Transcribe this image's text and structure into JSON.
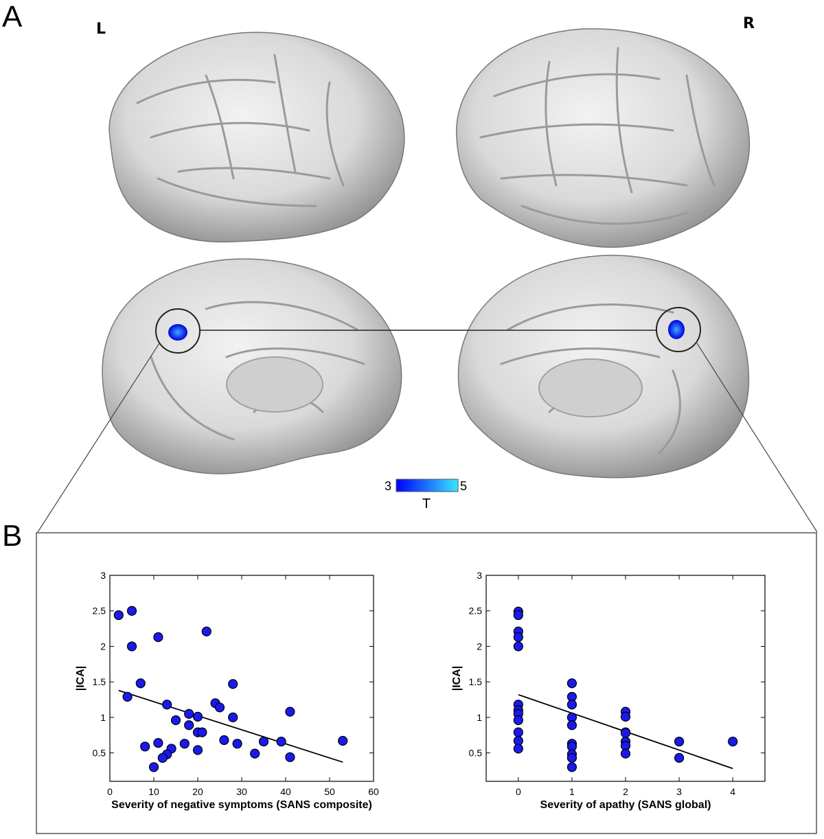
{
  "panels": {
    "a_label": "A",
    "b_label": "B",
    "left_hemi": "L",
    "right_hemi": "R"
  },
  "colorbar": {
    "min": "3",
    "max": "5",
    "label": "T",
    "color_low": "#0000ff",
    "color_high": "#39e6ff"
  },
  "chart_data": [
    {
      "type": "scatter",
      "title": "",
      "xlabel": "Severity of negative symptoms (SANS composite)",
      "ylabel": "|ICA|",
      "xlim": [
        0,
        60
      ],
      "ylim": [
        0.1,
        3
      ],
      "xticks": [
        0,
        10,
        20,
        30,
        40,
        50,
        60
      ],
      "yticks": [
        0.5,
        1,
        1.5,
        2,
        2.5,
        3
      ],
      "ytick_labels": [
        "0.5",
        "1",
        "1.5",
        "2",
        "2.5",
        "3"
      ],
      "marker_color": "#1a1aee",
      "points": [
        {
          "x": 2,
          "y": 2.44
        },
        {
          "x": 5,
          "y": 2.5
        },
        {
          "x": 5,
          "y": 2.0
        },
        {
          "x": 11,
          "y": 2.13
        },
        {
          "x": 22,
          "y": 2.21
        },
        {
          "x": 7,
          "y": 1.48
        },
        {
          "x": 4,
          "y": 1.29
        },
        {
          "x": 13,
          "y": 1.18
        },
        {
          "x": 28,
          "y": 1.47
        },
        {
          "x": 24,
          "y": 1.2
        },
        {
          "x": 25,
          "y": 1.14
        },
        {
          "x": 18,
          "y": 1.05
        },
        {
          "x": 20,
          "y": 1.01
        },
        {
          "x": 28,
          "y": 1.0
        },
        {
          "x": 15,
          "y": 0.96
        },
        {
          "x": 18,
          "y": 0.89
        },
        {
          "x": 20,
          "y": 0.79
        },
        {
          "x": 21,
          "y": 0.79
        },
        {
          "x": 41,
          "y": 1.08
        },
        {
          "x": 26,
          "y": 0.68
        },
        {
          "x": 29,
          "y": 0.63
        },
        {
          "x": 35,
          "y": 0.66
        },
        {
          "x": 39,
          "y": 0.66
        },
        {
          "x": 53,
          "y": 0.67
        },
        {
          "x": 11,
          "y": 0.64
        },
        {
          "x": 8,
          "y": 0.59
        },
        {
          "x": 17,
          "y": 0.63
        },
        {
          "x": 14,
          "y": 0.56
        },
        {
          "x": 13,
          "y": 0.48
        },
        {
          "x": 20,
          "y": 0.54
        },
        {
          "x": 12,
          "y": 0.43
        },
        {
          "x": 33,
          "y": 0.49
        },
        {
          "x": 41,
          "y": 0.44
        },
        {
          "x": 10,
          "y": 0.3
        }
      ],
      "fit_line": [
        {
          "x": 2,
          "y": 1.38
        },
        {
          "x": 53,
          "y": 0.37
        }
      ]
    },
    {
      "type": "scatter",
      "title": "",
      "xlabel": "Severity of apathy (SANS global)",
      "ylabel": "|ICA|",
      "xlim": [
        -0.6,
        4.6
      ],
      "ylim": [
        0.1,
        3
      ],
      "xticks": [
        0,
        1,
        2,
        3,
        4
      ],
      "yticks": [
        0.5,
        1,
        1.5,
        2,
        2.5,
        3
      ],
      "ytick_labels": [
        "0.5",
        "1",
        "1.5",
        "2",
        "2.5",
        "3"
      ],
      "marker_color": "#1a1aee",
      "points": [
        {
          "x": 0,
          "y": 2.49
        },
        {
          "x": 0,
          "y": 2.44
        },
        {
          "x": 0,
          "y": 2.21
        },
        {
          "x": 0,
          "y": 2.13
        },
        {
          "x": 0,
          "y": 2.0
        },
        {
          "x": 0,
          "y": 1.18
        },
        {
          "x": 0,
          "y": 1.1
        },
        {
          "x": 0,
          "y": 1.05
        },
        {
          "x": 0,
          "y": 0.96
        },
        {
          "x": 0,
          "y": 0.79
        },
        {
          "x": 0,
          "y": 0.67
        },
        {
          "x": 0,
          "y": 0.56
        },
        {
          "x": 1,
          "y": 1.48
        },
        {
          "x": 1,
          "y": 1.29
        },
        {
          "x": 1,
          "y": 1.18
        },
        {
          "x": 1,
          "y": 1.0
        },
        {
          "x": 1,
          "y": 0.89
        },
        {
          "x": 1,
          "y": 0.63
        },
        {
          "x": 1,
          "y": 0.59
        },
        {
          "x": 1,
          "y": 0.48
        },
        {
          "x": 1,
          "y": 0.43
        },
        {
          "x": 1,
          "y": 0.3
        },
        {
          "x": 2,
          "y": 1.08
        },
        {
          "x": 2,
          "y": 1.01
        },
        {
          "x": 2,
          "y": 0.79
        },
        {
          "x": 2,
          "y": 0.78
        },
        {
          "x": 2,
          "y": 0.66
        },
        {
          "x": 2,
          "y": 0.6
        },
        {
          "x": 2,
          "y": 0.49
        },
        {
          "x": 3,
          "y": 0.66
        },
        {
          "x": 3,
          "y": 0.43
        },
        {
          "x": 4,
          "y": 0.66
        }
      ],
      "fit_line": [
        {
          "x": 0,
          "y": 1.32
        },
        {
          "x": 4,
          "y": 0.28
        }
      ]
    }
  ]
}
